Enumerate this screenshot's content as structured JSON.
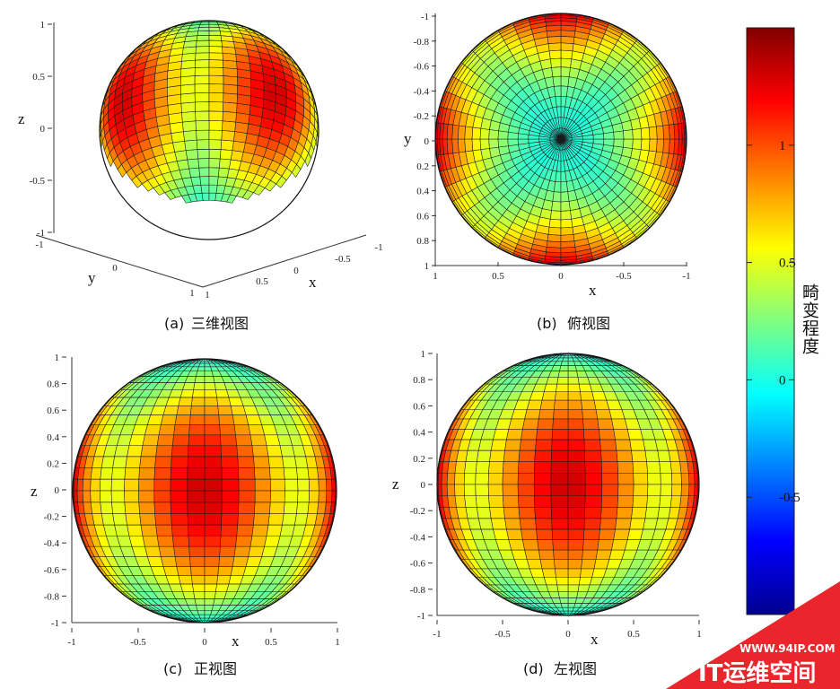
{
  "chart_data": [
    {
      "type": "surface",
      "panel": "a",
      "caption_label": "(a)",
      "caption_text": "三维视图",
      "view": "3d",
      "xlabel": "x",
      "ylabel": "y",
      "zlabel": "z",
      "x_ticks": [
        "1",
        "0.5",
        "0",
        "-0.5",
        "-1"
      ],
      "y_ticks": [
        "-1",
        "0",
        "1"
      ],
      "z_ticks": [
        "1",
        "0.5",
        "0",
        "-0.5",
        "-1"
      ],
      "xlim": [
        -1,
        1
      ],
      "ylim": [
        -1,
        1
      ],
      "zlim": [
        -1,
        1
      ]
    },
    {
      "type": "surface",
      "panel": "b",
      "caption_label": "(b)",
      "caption_text": "俯视图",
      "view": "top",
      "xlabel": "x",
      "ylabel": "y",
      "x_ticks": [
        "1",
        "0.5",
        "0",
        "-0.5",
        "-1"
      ],
      "y_ticks": [
        "-1",
        "-0.8",
        "-0.6",
        "-0.4",
        "-0.2",
        "0",
        "0.2",
        "0.4",
        "0.6",
        "0.8",
        "1"
      ],
      "xlim": [
        1,
        -1
      ],
      "ylim": [
        -1,
        1
      ]
    },
    {
      "type": "surface",
      "panel": "c",
      "caption_label": "(c)",
      "caption_text": "正视图",
      "view": "front",
      "xlabel": "x",
      "ylabel": "z",
      "x_ticks": [
        "-1",
        "-0.5",
        "0",
        "0.5",
        "1"
      ],
      "y_ticks": [
        "1",
        "0.8",
        "0.6",
        "0.4",
        "0.2",
        "0",
        "-0.2",
        "-0.4",
        "-0.6",
        "-0.8",
        "-1"
      ],
      "xlim": [
        -1,
        1
      ],
      "ylim": [
        -1,
        1
      ]
    },
    {
      "type": "surface",
      "panel": "d",
      "caption_label": "(d)",
      "caption_text": "左视图",
      "view": "left",
      "xlabel": "x",
      "ylabel": "z",
      "x_ticks": [
        "-1",
        "-0.5",
        "0",
        "0.5",
        "1"
      ],
      "y_ticks": [
        "1",
        "0.8",
        "0.6",
        "0.4",
        "0.2",
        "0",
        "-0.2",
        "-0.4",
        "-0.6",
        "-0.8",
        "-1"
      ],
      "xlim": [
        -1,
        1
      ],
      "ylim": [
        -1,
        1
      ]
    }
  ],
  "colorbar": {
    "label": "畸变程度",
    "ticks": [
      "1",
      "0.5",
      "0",
      "-0.5"
    ],
    "tick_values": [
      1,
      0.5,
      0,
      -0.5
    ],
    "range": [
      -1,
      1.5
    ],
    "colormap": "jet"
  },
  "watermark": {
    "url": "WWW.94IP.COM",
    "name": "IT运维空间",
    "color": "#e8262c"
  }
}
